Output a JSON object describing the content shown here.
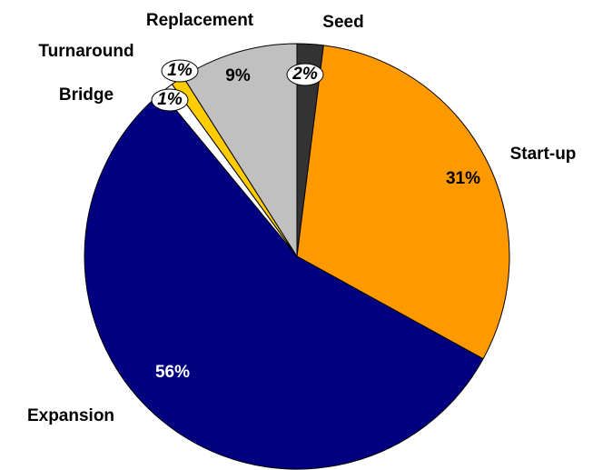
{
  "chart_data": {
    "type": "pie",
    "categories": [
      "Seed",
      "Start-up",
      "Expansion",
      "Bridge",
      "Turnaround",
      "Replacement"
    ],
    "values": [
      2,
      31,
      56,
      1,
      1,
      9
    ],
    "value_labels": [
      "2%",
      "31%",
      "56%",
      "1%",
      "1%",
      "9%"
    ],
    "colors": [
      "#333333",
      "#ff9900",
      "#000080",
      "#ffffff",
      "#ffcc00",
      "#c0c0c0"
    ]
  }
}
